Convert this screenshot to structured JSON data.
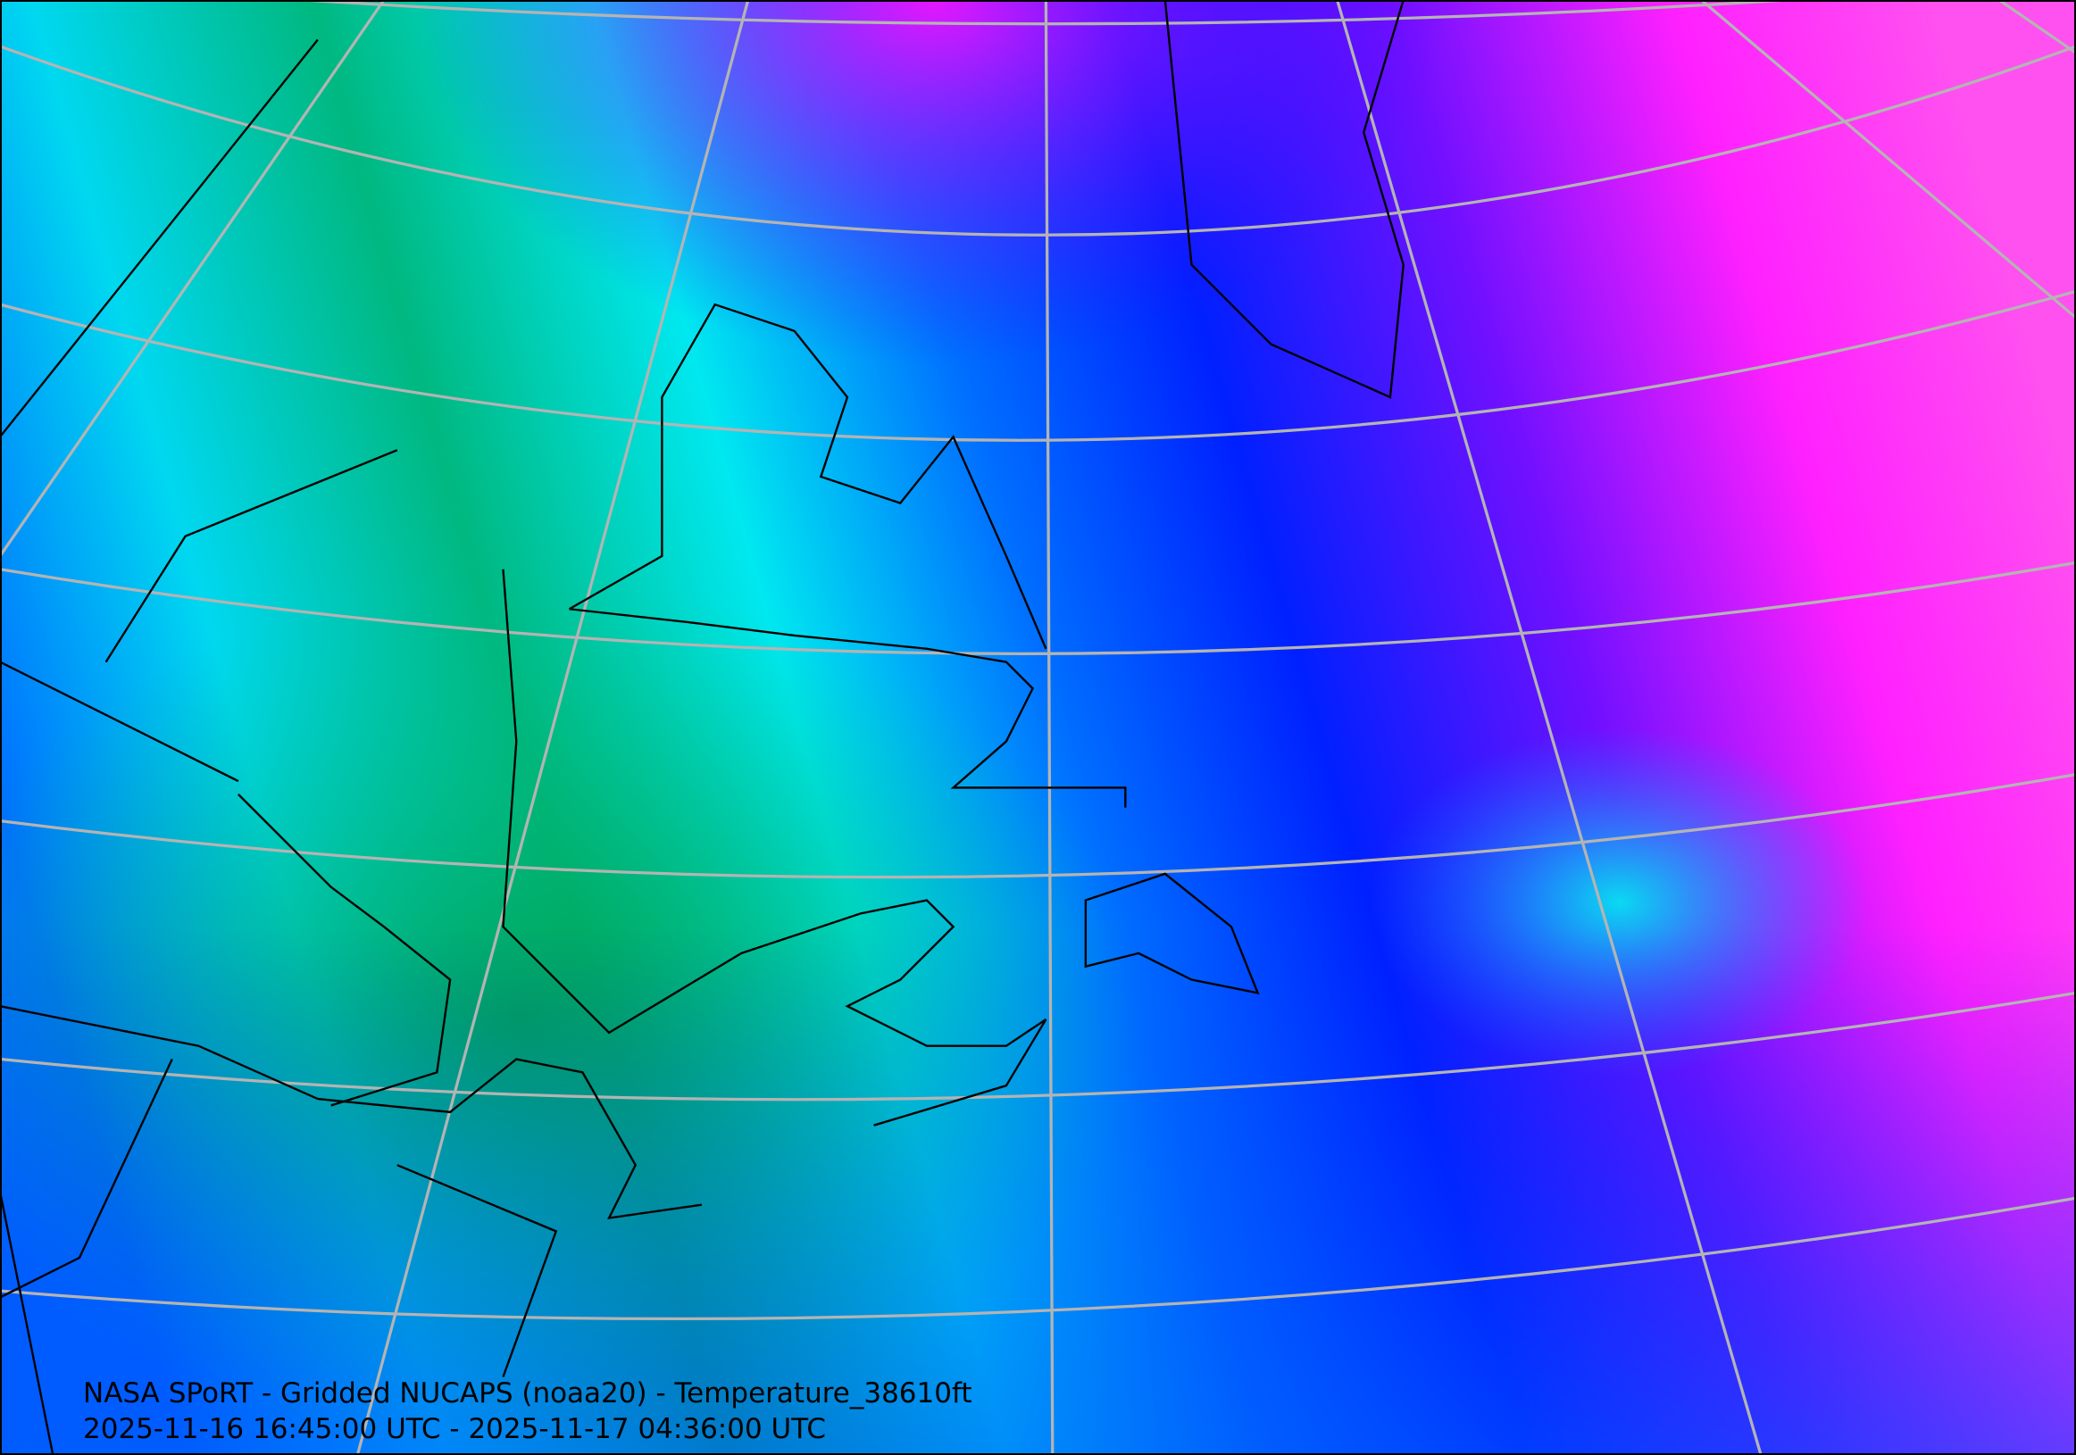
{
  "map": {
    "title": "NASA SPoRT - Gridded NUCAPS (noaa20) - Temperature_38610ft",
    "time_range": "2025-11-16 16:45:00 UTC - 2025-11-17 04:36:00 UTC",
    "colors": {
      "green": "#00a050",
      "aqua": "#00f0e0",
      "cyan": "#00e0ff",
      "sky_blue": "#0090ff",
      "blue": "#0020ff",
      "violet": "#8000ff",
      "magenta": "#ff10ff",
      "gridline": "#b4b4b4",
      "coastline": "#000000"
    }
  }
}
